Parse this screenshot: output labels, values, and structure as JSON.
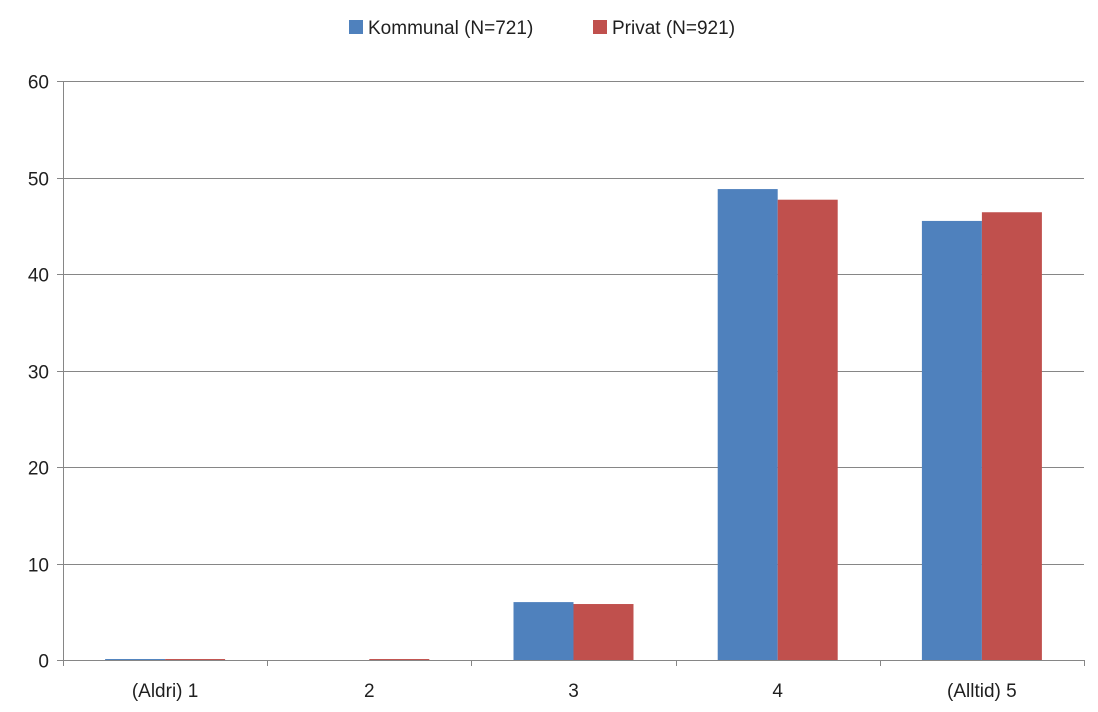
{
  "chart_data": {
    "type": "bar",
    "categories": [
      "(Aldri) 1",
      "2",
      "3",
      "4",
      "(Alltid) 5"
    ],
    "series": [
      {
        "name": "Kommunal (N=721)",
        "color": "#4f81bd",
        "values": [
          0.1,
          0.0,
          6.0,
          48.8,
          45.5
        ]
      },
      {
        "name": "Privat (N=921)",
        "color": "#c0504d",
        "values": [
          0.1,
          0.1,
          5.8,
          47.7,
          46.4
        ]
      }
    ],
    "title": "",
    "xlabel": "",
    "ylabel": "",
    "ylim": [
      0,
      60
    ],
    "yticks": [
      0,
      10,
      20,
      30,
      40,
      50,
      60
    ],
    "grid": true,
    "legend_position": "top-center"
  }
}
